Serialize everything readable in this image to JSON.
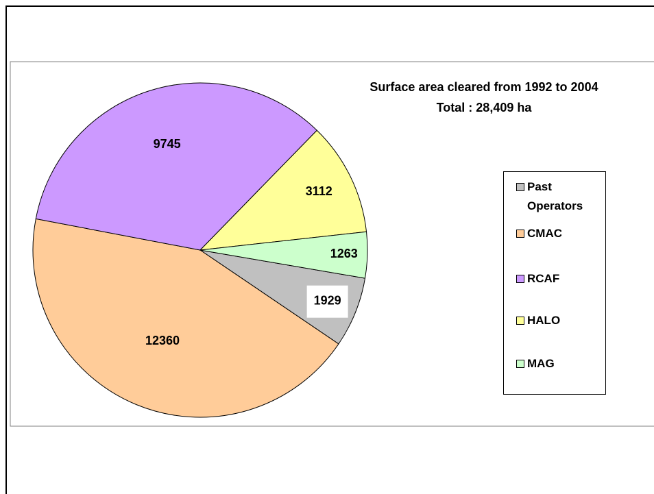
{
  "chart_data": {
    "type": "pie",
    "title": "Surface area cleared from 1992 to 2004",
    "subtitle": "Total : 28,409 ha",
    "categories": [
      "Past Operators",
      "CMAC",
      "RCAF",
      "HALO",
      "MAG"
    ],
    "values": [
      1929,
      12360,
      9745,
      3112,
      1263
    ],
    "colors": [
      "#c0c0c0",
      "#ffcc99",
      "#cc99ff",
      "#ffff99",
      "#ccffcc"
    ]
  }
}
